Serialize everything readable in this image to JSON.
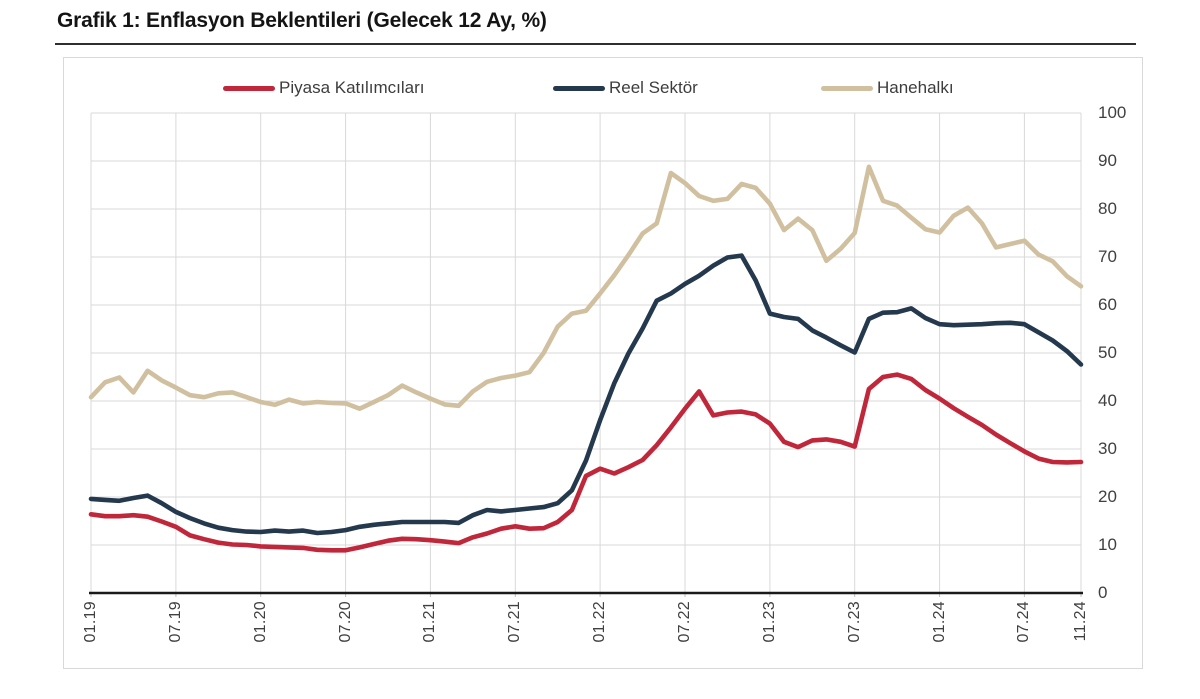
{
  "header": {
    "title": "Grafik 1: Enflasyon Beklentileri (Gelecek 12 Ay, %)"
  },
  "legend": [
    {
      "label": "Piyasa Katılımcıları"
    },
    {
      "label": "Reel Sektör"
    },
    {
      "label": "Hanehalkı"
    }
  ],
  "chart_data": {
    "type": "line",
    "title": "Grafik 1: Enflasyon Beklentileri (Gelecek 12 Ay, %)",
    "x_tick_labels": [
      "01.19",
      "07.19",
      "01.20",
      "07.20",
      "01.21",
      "07.21",
      "01.22",
      "07.22",
      "01.23",
      "07.23",
      "01.24",
      "07.24",
      "11.24"
    ],
    "x_tick_indices": [
      0,
      6,
      12,
      18,
      24,
      30,
      36,
      42,
      48,
      54,
      60,
      66,
      70
    ],
    "x_frequency": "monthly",
    "y_ticks": [
      0,
      10,
      20,
      30,
      40,
      50,
      60,
      70,
      80,
      90,
      100
    ],
    "ylim": [
      0,
      100
    ],
    "grid": true,
    "legend_position": "top",
    "axis_label_color": "#404040",
    "gridline_color": "#d9d9d9",
    "series": [
      {
        "name": "Piyasa Katılımcıları",
        "color": "#c1273a",
        "values": [
          16.4,
          16.0,
          16.0,
          16.2,
          15.9,
          14.9,
          13.8,
          12.0,
          11.2,
          10.5,
          10.1,
          10.0,
          9.7,
          9.6,
          9.5,
          9.4,
          9.0,
          8.9,
          8.9,
          9.5,
          10.2,
          10.9,
          11.3,
          11.2,
          11.0,
          10.7,
          10.4,
          11.6,
          12.4,
          13.4,
          13.9,
          13.4,
          13.5,
          14.8,
          17.3,
          24.4,
          25.9,
          24.9,
          26.2,
          27.7,
          30.8,
          34.5,
          38.4,
          42.0,
          37.0,
          37.6,
          37.8,
          37.2,
          35.3,
          31.5,
          30.4,
          31.8,
          32.0,
          31.5,
          30.5,
          42.5,
          45.0,
          45.5,
          44.6,
          42.3,
          40.5,
          38.5,
          36.7,
          35.0,
          33.0,
          31.2,
          29.5,
          28.0,
          27.3,
          27.2,
          27.3
        ]
      },
      {
        "name": "Reel Sektör",
        "color": "#24384e",
        "values": [
          19.6,
          19.4,
          19.2,
          19.8,
          20.3,
          18.7,
          16.9,
          15.6,
          14.5,
          13.6,
          13.1,
          12.8,
          12.7,
          13.0,
          12.8,
          13.0,
          12.5,
          12.7,
          13.1,
          13.8,
          14.2,
          14.5,
          14.8,
          14.8,
          14.8,
          14.8,
          14.6,
          16.2,
          17.3,
          17.0,
          17.3,
          17.6,
          17.9,
          18.7,
          21.4,
          27.6,
          36.0,
          43.7,
          49.9,
          55.1,
          60.9,
          62.4,
          64.4,
          66.1,
          68.2,
          69.9,
          70.3,
          65.1,
          58.2,
          57.5,
          57.1,
          54.7,
          53.2,
          51.6,
          50.1,
          57.1,
          58.4,
          58.5,
          59.3,
          57.3,
          56.0,
          55.8,
          55.9,
          56.0,
          56.2,
          56.3,
          56.0,
          54.3,
          52.6,
          50.4,
          47.6
        ]
      },
      {
        "name": "Hanehalkı",
        "color": "#d1c0a0",
        "values": [
          40.8,
          43.9,
          44.9,
          41.8,
          46.3,
          44.3,
          42.8,
          41.2,
          40.8,
          41.6,
          41.8,
          40.8,
          39.8,
          39.2,
          40.3,
          39.5,
          39.8,
          39.6,
          39.5,
          38.4,
          39.8,
          41.2,
          43.2,
          41.8,
          40.5,
          39.3,
          39.0,
          42.0,
          44.0,
          44.8,
          45.3,
          46.0,
          50.0,
          55.5,
          58.2,
          58.8,
          62.4,
          66.2,
          70.4,
          74.9,
          77.0,
          87.5,
          85.4,
          82.7,
          81.7,
          82.1,
          85.2,
          84.4,
          81.1,
          75.6,
          78.0,
          75.6,
          69.2,
          71.7,
          75.0,
          88.8,
          81.7,
          80.7,
          78.2,
          75.8,
          75.1,
          78.6,
          80.3,
          77.0,
          72.0,
          72.7,
          73.4,
          70.5,
          69.1,
          66.0,
          63.9
        ]
      }
    ]
  }
}
